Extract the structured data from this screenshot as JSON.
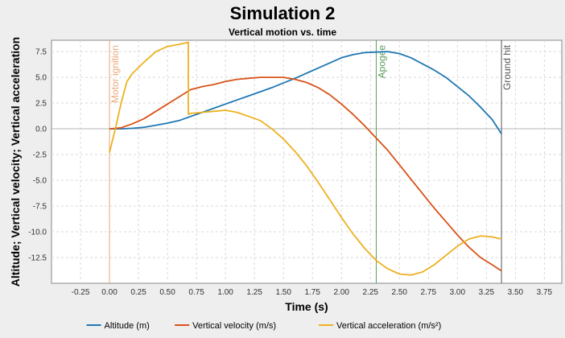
{
  "chart_data": {
    "type": "line",
    "title": "Simulation 2",
    "subtitle": "Vertical motion vs. time",
    "xlabel": "Time (s)",
    "ylabel": "Altitude; Vertical velocity; Vertical acceleration",
    "xlim": [
      -0.5,
      3.9
    ],
    "ylim": [
      -15,
      8.6
    ],
    "xticks": [
      -0.25,
      0.0,
      0.25,
      0.5,
      0.75,
      1.0,
      1.25,
      1.5,
      1.75,
      2.0,
      2.25,
      2.5,
      2.75,
      3.0,
      3.25,
      3.5,
      3.75
    ],
    "xtick_labels": [
      "-0.25",
      "0.00",
      "0.25",
      "0.50",
      "0.75",
      "1.00",
      "1.25",
      "1.50",
      "1.75",
      "2.00",
      "2.25",
      "2.50",
      "2.75",
      "3.00",
      "3.25",
      "3.50",
      "3.75"
    ],
    "yticks": [
      7.5,
      5.0,
      2.5,
      0.0,
      -2.5,
      -5.0,
      -7.5,
      -10.0,
      -12.5
    ],
    "ytick_labels": [
      "7.5",
      "5.0",
      "2.5",
      "0.0",
      "-2.5",
      "-5.0",
      "-7.5",
      "-10.0",
      "-12.5"
    ],
    "grid": true,
    "legend_position": "bottom",
    "events": [
      {
        "label": "Motor ignition",
        "x": 0.0,
        "color": "#e8a87a"
      },
      {
        "label": "Apogee",
        "x": 2.3,
        "color": "#5a9e5a"
      },
      {
        "label": "Ground hit",
        "x": 3.38,
        "color": "#555555"
      }
    ],
    "series": [
      {
        "name": "Altitude (m)",
        "color": "#1f77b4",
        "x": [
          0.0,
          0.1,
          0.2,
          0.3,
          0.4,
          0.5,
          0.6,
          0.7,
          0.8,
          0.9,
          1.0,
          1.1,
          1.2,
          1.3,
          1.4,
          1.5,
          1.6,
          1.7,
          1.8,
          1.9,
          2.0,
          2.1,
          2.2,
          2.3,
          2.4,
          2.5,
          2.6,
          2.7,
          2.8,
          2.9,
          3.0,
          3.1,
          3.2,
          3.3,
          3.38
        ],
        "y": [
          0.0,
          0.0,
          0.05,
          0.15,
          0.35,
          0.55,
          0.8,
          1.2,
          1.6,
          2.0,
          2.4,
          2.8,
          3.2,
          3.6,
          4.0,
          4.45,
          4.9,
          5.4,
          5.9,
          6.4,
          6.9,
          7.2,
          7.4,
          7.45,
          7.5,
          7.3,
          6.9,
          6.3,
          5.7,
          5.0,
          4.1,
          3.2,
          2.1,
          0.9,
          -0.5
        ]
      },
      {
        "name": "Vertical velocity (m/s)",
        "color": "#d95319",
        "x": [
          0.0,
          0.1,
          0.2,
          0.3,
          0.4,
          0.5,
          0.6,
          0.7,
          0.8,
          0.9,
          1.0,
          1.1,
          1.2,
          1.3,
          1.4,
          1.5,
          1.6,
          1.7,
          1.8,
          1.9,
          2.0,
          2.1,
          2.2,
          2.3,
          2.4,
          2.5,
          2.6,
          2.7,
          2.8,
          2.9,
          3.0,
          3.1,
          3.2,
          3.3,
          3.38
        ],
        "y": [
          0.0,
          0.1,
          0.5,
          1.0,
          1.7,
          2.4,
          3.1,
          3.8,
          4.1,
          4.3,
          4.6,
          4.8,
          4.9,
          5.0,
          5.0,
          5.0,
          4.8,
          4.5,
          4.0,
          3.3,
          2.4,
          1.4,
          0.3,
          -0.9,
          -2.1,
          -3.5,
          -4.9,
          -6.3,
          -7.7,
          -9.0,
          -10.3,
          -11.5,
          -12.5,
          -13.2,
          -13.8
        ]
      },
      {
        "name": "Vertical acceleration (m/s²)",
        "color": "#edb120",
        "x": [
          0.0,
          0.05,
          0.1,
          0.15,
          0.2,
          0.3,
          0.4,
          0.5,
          0.6,
          0.68,
          0.68,
          0.7,
          0.8,
          0.9,
          1.0,
          1.1,
          1.2,
          1.3,
          1.4,
          1.5,
          1.6,
          1.7,
          1.8,
          1.9,
          2.0,
          2.1,
          2.2,
          2.3,
          2.4,
          2.5,
          2.6,
          2.7,
          2.8,
          2.9,
          3.0,
          3.1,
          3.2,
          3.3,
          3.38
        ],
        "y": [
          -2.3,
          0.0,
          2.5,
          4.6,
          5.4,
          6.5,
          7.5,
          8.0,
          8.2,
          8.4,
          1.4,
          1.5,
          1.6,
          1.7,
          1.8,
          1.6,
          1.2,
          0.8,
          0.0,
          -1.0,
          -2.2,
          -3.6,
          -5.2,
          -6.9,
          -8.6,
          -10.2,
          -11.6,
          -12.8,
          -13.6,
          -14.1,
          -14.2,
          -13.9,
          -13.2,
          -12.3,
          -11.4,
          -10.7,
          -10.4,
          -10.5,
          -10.7
        ]
      }
    ]
  }
}
